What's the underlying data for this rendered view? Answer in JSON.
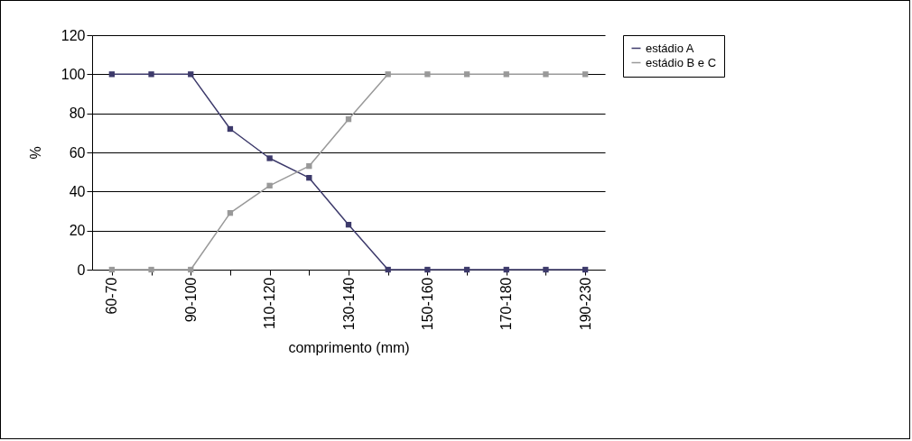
{
  "chart_data": {
    "type": "line",
    "xlabel": "comprimento (mm)",
    "ylabel": "%",
    "categories": [
      "60-70",
      null,
      "90-100",
      null,
      "110-120",
      null,
      "130-140",
      null,
      "150-160",
      null,
      "170-180",
      null,
      "190-230"
    ],
    "series": [
      {
        "name": "estádio A",
        "color": "#3d3a6b",
        "values": [
          100,
          100,
          100,
          72,
          57,
          47,
          23,
          0,
          0,
          0,
          0,
          0,
          0
        ]
      },
      {
        "name": "estádio B e C",
        "color": "#999999",
        "values": [
          0,
          0,
          0,
          29,
          43,
          53,
          77,
          100,
          100,
          100,
          100,
          100,
          100
        ]
      }
    ],
    "ylim": [
      0,
      120
    ],
    "yticks": [
      0,
      20,
      40,
      60,
      80,
      100,
      120
    ],
    "grid": "y",
    "legend": "right",
    "marker": "square",
    "line_style": "solid"
  }
}
